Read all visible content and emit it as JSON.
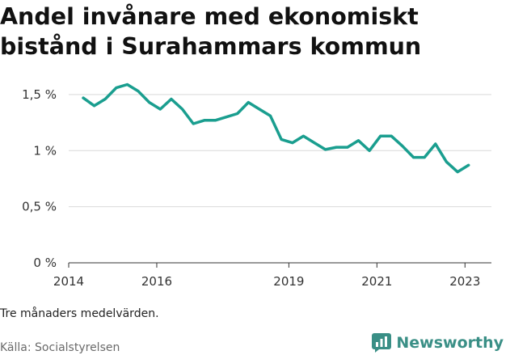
{
  "title": "Andel invånare med ekonomiskt bistånd i Surahammars kommun",
  "note": "Tre månaders medelvärden.",
  "source": "Källa: Socialstyrelsen",
  "brand": {
    "name": "Newsworthy",
    "icon": "newsworthy-chart-icon",
    "color": "#3a8f86"
  },
  "chart_data": {
    "type": "line",
    "title": "Andel invånare med ekonomiskt bistånd i Surahammars kommun",
    "xlabel": "",
    "ylabel": "",
    "xlim": [
      2014,
      2023.6
    ],
    "ylim": [
      0,
      1.55
    ],
    "y_ticks": [
      0,
      0.5,
      1,
      1.5
    ],
    "y_tick_labels": [
      "0 %",
      "0,5 %",
      "1 %",
      "1,5 %"
    ],
    "x_ticks": [
      2014,
      2016,
      2019,
      2021,
      2023
    ],
    "x_tick_labels": [
      "2014",
      "2016",
      "2019",
      "2021",
      "2023"
    ],
    "grid": "horizontal",
    "line_color": "#1a9e8f",
    "series": [
      {
        "x": [
          2014.33,
          2014.58,
          2014.83,
          2015.08,
          2015.33,
          2015.58,
          2015.83,
          2016.08,
          2016.33,
          2016.58,
          2016.83,
          2017.08,
          2017.33,
          2017.58,
          2017.83,
          2018.08,
          2018.33,
          2018.58,
          2018.83,
          2019.08,
          2019.33,
          2019.58,
          2019.83,
          2020.08,
          2020.33,
          2020.58,
          2020.83,
          2021.08,
          2021.33,
          2021.58,
          2021.83,
          2022.08,
          2022.33,
          2022.58,
          2022.83,
          2023.08
        ],
        "values": [
          1.47,
          1.4,
          1.46,
          1.56,
          1.59,
          1.53,
          1.43,
          1.37,
          1.46,
          1.37,
          1.24,
          1.27,
          1.27,
          1.3,
          1.33,
          1.43,
          1.37,
          1.31,
          1.1,
          1.07,
          1.13,
          1.07,
          1.01,
          1.03,
          1.03,
          1.09,
          1.0,
          1.13,
          1.13,
          1.04,
          0.94,
          0.94,
          1.06,
          0.9,
          0.81,
          0.87
        ]
      }
    ]
  }
}
